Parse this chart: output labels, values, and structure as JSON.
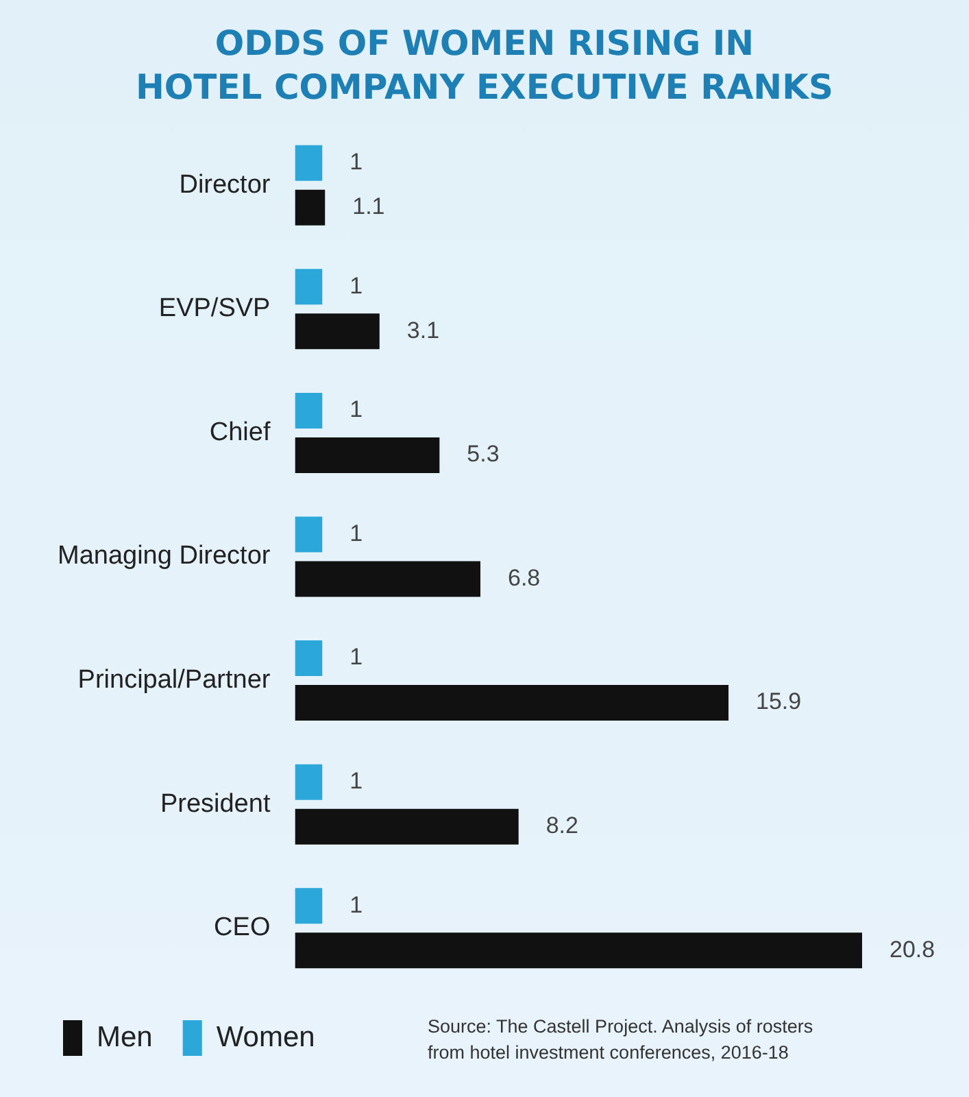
{
  "chart_data": {
    "type": "bar",
    "orientation": "horizontal",
    "title": "ODDS OF WOMEN RISING IN\nHOTEL COMPANY EXECUTIVE RANKS",
    "categories": [
      "Director",
      "EVP/SVP",
      "Chief",
      "Managing Director",
      "Principal/Partner",
      "President",
      "CEO"
    ],
    "series": [
      {
        "name": "Women",
        "color": "#2ba7da",
        "values": [
          1,
          1,
          1,
          1,
          1,
          1,
          1
        ]
      },
      {
        "name": "Men",
        "color": "#111111",
        "values": [
          1.1,
          3.1,
          5.3,
          6.8,
          15.9,
          8.2,
          20.8
        ]
      }
    ],
    "data_labels": true,
    "legend": "bottom left",
    "grid": false,
    "annotations": [
      "Source: The Castell Project. Analysis of rosters\nfrom hotel investment conferences, 2016-18"
    ]
  }
}
